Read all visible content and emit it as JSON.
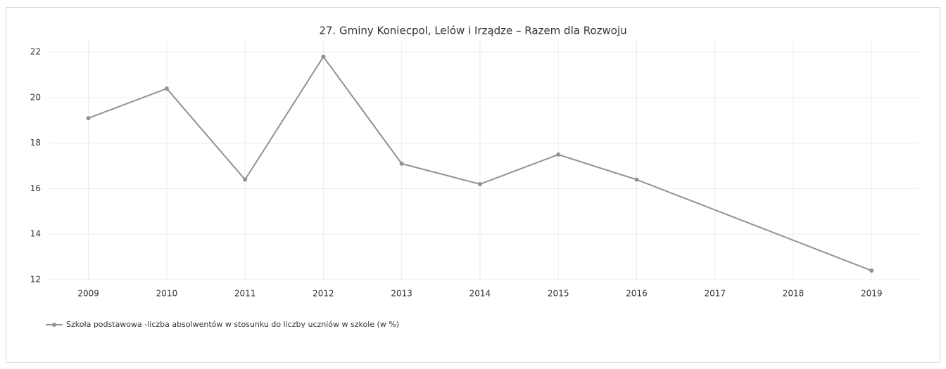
{
  "chart_data": {
    "type": "line",
    "title": "27. Gminy Koniecpol, Lelów  i Irządze – Razem dla Rozwoju",
    "x": [
      2009,
      2010,
      2011,
      2012,
      2013,
      2014,
      2015,
      2016,
      2019
    ],
    "series": [
      {
        "name": "Szkoła podstawowa -liczba absolwentów w stosunku do liczby uczniów w szkole  (w %)",
        "color": "#8a9694",
        "values": [
          19.1,
          20.4,
          16.4,
          21.8,
          17.1,
          16.2,
          17.5,
          16.4,
          12.4
        ]
      }
    ],
    "xlim": [
      2008.5,
      2019.6
    ],
    "xticks": [
      2009,
      2010,
      2011,
      2012,
      2013,
      2014,
      2015,
      2016,
      2017,
      2018,
      2019
    ],
    "ylim": [
      12,
      22.5
    ],
    "yticks": [
      12,
      14,
      16,
      18,
      20,
      22
    ],
    "grid": true,
    "legend": "bottom-left"
  }
}
